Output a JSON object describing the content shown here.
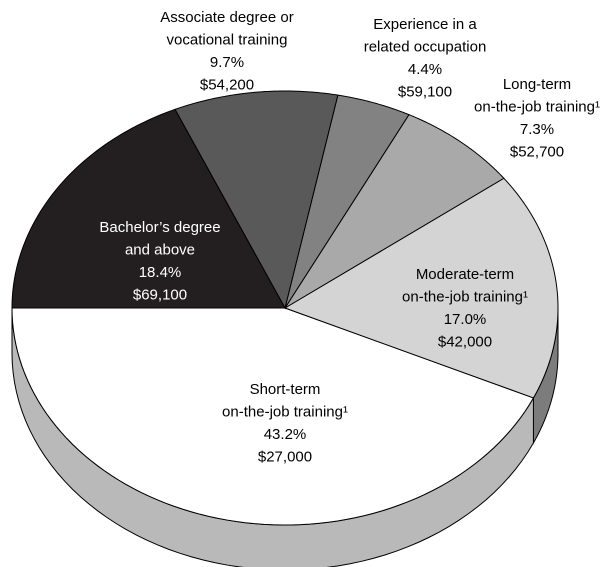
{
  "chart_data": {
    "type": "pie3d",
    "categories": [
      [
        "Short-term",
        "on-the-job training¹"
      ],
      [
        "Moderate-term",
        "on-the-job training¹"
      ],
      [
        "Long-term",
        "on-the-job training¹"
      ],
      [
        "Experience in a",
        "related occupation"
      ],
      [
        "Associate degree or",
        "vocational training"
      ],
      [
        "Bachelor’s degree",
        "and above"
      ]
    ],
    "values": [
      43.2,
      17.0,
      7.3,
      4.4,
      9.7,
      18.4
    ],
    "value_labels": [
      "43.2%",
      "17.0%",
      "7.3%",
      "4.4%",
      "9.7%",
      "18.4%"
    ],
    "earnings": [
      27000,
      42000,
      52700,
      59100,
      54200,
      69100
    ],
    "earnings_labels": [
      "$27,000",
      "$42,000",
      "$52,700",
      "$59,100",
      "$54,200",
      "$69,100"
    ],
    "colors": [
      "#ffffff",
      "#d4d4d4",
      "#a9a9a9",
      "#828282",
      "#595959",
      "#231f20"
    ]
  }
}
